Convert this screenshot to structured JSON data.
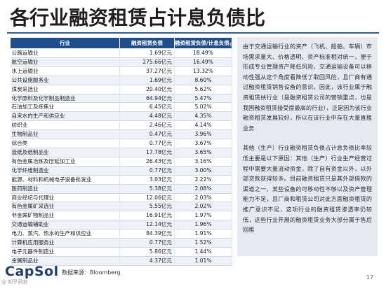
{
  "title": "各行业融资租赁占计息负债比",
  "table": {
    "headers": [
      "行业",
      "融资租赁负债",
      "融资租赁负债/计息负债占比"
    ],
    "rows": [
      [
        "公路运输业",
        "1.69亿元",
        "18.49%"
      ],
      [
        "航空运输业",
        "275.66亿元",
        "16.49%"
      ],
      [
        "水上运输业",
        "37.27亿元",
        "13.32%"
      ],
      [
        "公共设施服务业",
        "1.69亿元",
        "8.60%"
      ],
      [
        "煤炭采选业",
        "20.40亿元",
        "5.62%"
      ],
      [
        "化学原料及化学制品制造业",
        "64.94亿元",
        "5.47%"
      ],
      [
        "石油加工及炼焦业",
        "6.45亿元",
        "5.02%"
      ],
      [
        "自来水的生产和供应业",
        "4.48亿元",
        "4.35%"
      ],
      [
        "纺织业",
        "2.46亿元",
        "4.14%"
      ],
      [
        "生物制品业",
        "0.47亿元",
        "3.96%"
      ],
      [
        "综合类",
        "0.77亿元",
        "3.67%"
      ],
      [
        "造纸及纸制品业",
        "17.78亿元",
        "3.65%"
      ],
      [
        "有色金属冶炼及压延加工业",
        "26.43亿元",
        "3.16%"
      ],
      [
        "化学纤维制造业",
        "0.77亿元",
        "3.00%"
      ],
      [
        "能源、材料和机械电子设备批发业",
        "3.03亿元",
        "2.22%"
      ],
      [
        "医药制造业",
        "5.38亿元",
        "2.08%"
      ],
      [
        "商业经纪与代理业",
        "12.06亿元",
        "2.03%"
      ],
      [
        "有色金属矿采选业",
        "5.55亿元",
        "2.02%"
      ],
      [
        "非金属矿物制品业",
        "16.91亿元",
        "1.97%"
      ],
      [
        "交通运输辅助业",
        "12.14亿元",
        "1.96%"
      ],
      [
        "电力、蒸汽、热水的生产和供应业",
        "84.39亿元",
        "1.91%"
      ],
      [
        "计算机应用服务业",
        "0.77亿元",
        "1.52%"
      ],
      [
        "电子元器件制造业",
        "5.86亿元",
        "1.44%"
      ],
      [
        "金属制品业",
        "4.37亿元",
        "1.01%"
      ]
    ]
  },
  "textbox": {
    "paragraph1": "由于交通运输行业的资产（飞机、船舶、车辆）市场需求量大、价格透明、资产标准相对统一，便于形成专业管理资产降低风险，交通运输设备可以移动性强从这个角度看降低了取回风险，且厂商有通过融资租赁销售设备的意识。因此，该行业属于融资租赁扶行业（是融资租赁公司的营销重点，也是我国融资租赁接受度最高的行业），正是因为该行业融资租赁发展较好，所以在该行业中存在大量直租业务",
    "paragraph2": "其他（生产）行业融资租赁负债占计息负债比率较低主要是以下原因：其他（生产）行业生产经营过程中需要大量流动资金，除了自有资金以外，以外部贷款获得较多。目前融资租赁只是其外部借款的渠道之一，某些设备的可移动性不够以及资产管理能力不足，且厂商和租赁公司对此方面融资租赁的推广意识不足，这项行业的融资租赁渗透率仍较低，这些行业开展的融资租赁业务大部分属于售后回租"
  },
  "footer": {
    "logo": "CapSol",
    "source": "数据来源：Bloomberg",
    "watermark": "@ 知乎网友",
    "page_number": "17"
  },
  "colors": {
    "header_bg": "#1e4e8c",
    "title_rule": "#2f5d8f",
    "textbox_bg": "#e6eaf0",
    "logo": "#1f3f73"
  }
}
